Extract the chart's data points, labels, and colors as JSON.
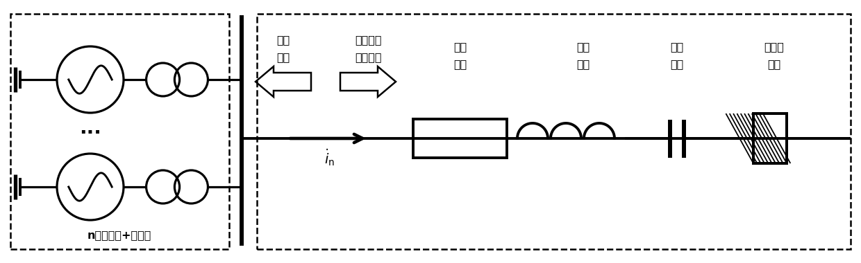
{
  "fig_width": 12.4,
  "fig_height": 3.8,
  "dpi": 100,
  "bg_color": "#ffffff",
  "line_color": "#000000",
  "lw": 1.8,
  "tlw": 2.8,
  "labels": {
    "plant_model_line1": "电厂",
    "plant_model_line2": "模型",
    "series_model_line1": "串补输电",
    "series_model_line2": "系统模型",
    "equiv_r_line1": "等效",
    "equiv_r_line2": "电阻",
    "equiv_l_line1": "等效",
    "equiv_l_line2": "电感",
    "equiv_c_line1": "等效",
    "equiv_c_line2": "电容",
    "inf_bus_line1": "无穷大",
    "inf_bus_line2": "母线",
    "n_generators": "n台发电机+变压器"
  },
  "font_size": 11.5
}
